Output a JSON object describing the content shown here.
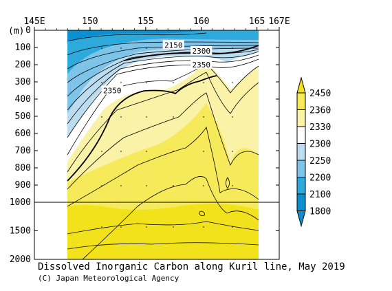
{
  "chart_data": {
    "type": "heatmap",
    "title": "Dissolved Inorganic Carbon along Kuril line, May 2019",
    "credit": "(C) Japan Meteorological Agency",
    "x_unit": "E",
    "y_unit": "(m)",
    "xlim": [
      145,
      167
    ],
    "x_ticks": [
      {
        "value": 145,
        "label": "145E"
      },
      {
        "value": 150,
        "label": "150"
      },
      {
        "value": 155,
        "label": "155"
      },
      {
        "value": 160,
        "label": "160"
      },
      {
        "value": 165,
        "label": "165"
      },
      {
        "value": 167,
        "label": "167E"
      }
    ],
    "y_ticks_upper": [
      0,
      100,
      200,
      300,
      400,
      500,
      600,
      700,
      800,
      900,
      1000
    ],
    "y_ticks_lower": [
      1500,
      2000
    ],
    "y_tick_labels": [
      "0",
      "100",
      "200",
      "300",
      "400",
      "500",
      "600",
      "700",
      "800",
      "900",
      "1000",
      "1500",
      "2000"
    ],
    "section_x_range": [
      148,
      165
    ],
    "contour_labels": [
      {
        "text": "2150",
        "lon": 157.5,
        "depth": 85
      },
      {
        "text": "2300",
        "lon": 160.0,
        "depth": 120
      },
      {
        "text": "2350",
        "lon": 160.0,
        "depth": 200
      },
      {
        "text": "2350",
        "lon": 152.0,
        "depth": 350
      }
    ],
    "colorbar": {
      "levels": [
        "2450",
        "2360",
        "2330",
        "2300",
        "2250",
        "2200",
        "2100",
        "1800"
      ],
      "colors": [
        "#f2e21c",
        "#f6e95a",
        "#faf2a6",
        "#ffffff",
        "#bcdcf0",
        "#7ec3e8",
        "#2ea9dc",
        "#0a8fd0"
      ]
    }
  }
}
